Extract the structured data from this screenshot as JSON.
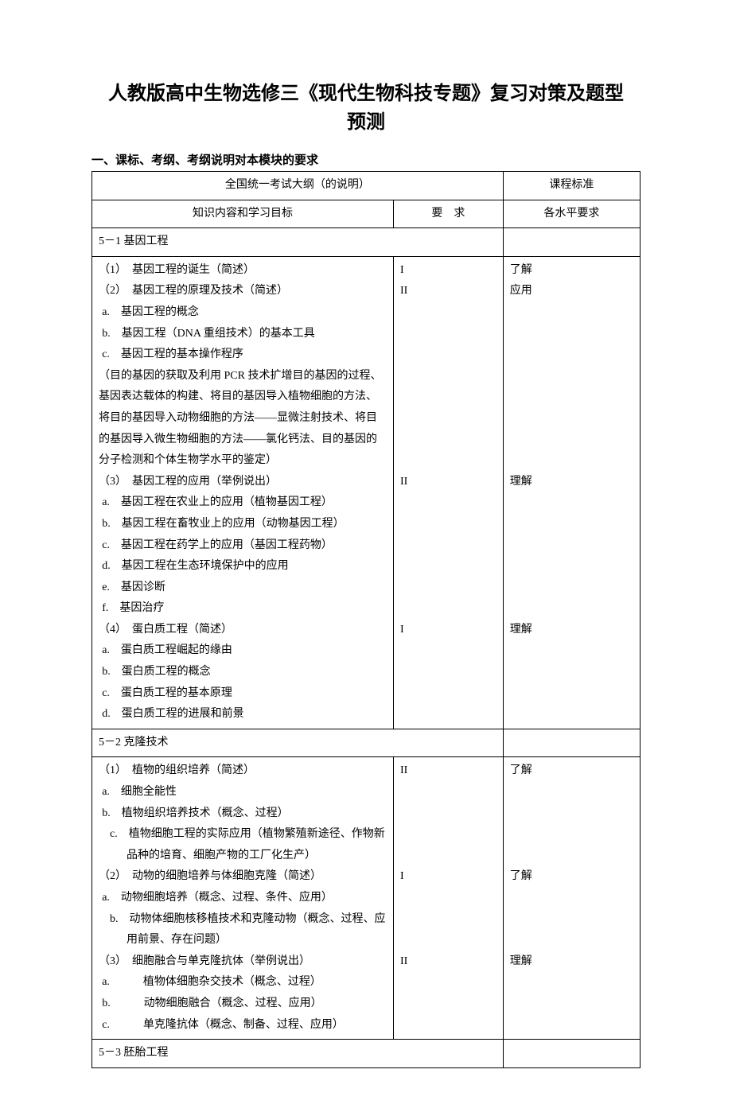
{
  "title_line1": "人教版高中生物选修三《现代生物科技专题》复习对策及题型",
  "title_line2": "预测",
  "section1_heading": "一、课标、考纲、考纲说明对本模块的要求",
  "header": {
    "exam_outline": "全国统一考试大纲（的说明）",
    "curriculum_std": "课程标准",
    "content_target": "知识内容和学习目标",
    "requirement": "要　求",
    "level_req": "各水平要求"
  },
  "req_labels": {
    "I": "I",
    "II": "II"
  },
  "std_labels": {
    "know": "了解",
    "apply": "应用",
    "understand": "理解"
  },
  "section_5_1": {
    "title": "5－1 基因工程",
    "items": [
      "（1）　基因工程的诞生（简述）",
      "（2）　基因工程的原理及技术（简述）",
      "a.　基因工程的概念",
      "b.　基因工程（DNA 重组技术）的基本工具",
      "c.　基因工程的基本操作程序",
      "（目的基因的获取及利用 PCR 技术扩增目的基因的过程、基因表达载体的构建、将目的基因导入植物细胞的方法、将目的基因导入动物细胞的方法——显微注射技术、将目的基因导入微生物细胞的方法——氯化钙法、目的基因的分子检测和个体生物学水平的鉴定）",
      "（3）　基因工程的应用（举例说出）",
      "a.　基因工程在农业上的应用（植物基因工程）",
      "b.　基因工程在畜牧业上的应用（动物基因工程）",
      "c.　基因工程在药学上的应用（基因工程药物）",
      "d.　基因工程在生态环境保护中的应用",
      "e.　基因诊断",
      "f.　基因治疗",
      "（4）　蛋白质工程（简述）",
      "a.　蛋白质工程崛起的缘由",
      "b.　蛋白质工程的概念",
      "c.　蛋白质工程的基本原理",
      "d.　蛋白质工程的进展和前景"
    ],
    "req_col": [
      "I",
      "II",
      "",
      "",
      "",
      "",
      "II",
      "",
      "",
      "",
      "",
      "",
      "",
      "I",
      "",
      "",
      "",
      ""
    ],
    "std_col": [
      "了解",
      "应用",
      "",
      "",
      "",
      "",
      "理解",
      "",
      "",
      "",
      "",
      "",
      "",
      "理解",
      "",
      "",
      "",
      ""
    ]
  },
  "section_5_2": {
    "title": "5－2 克隆技术",
    "items": [
      "（1）　植物的组织培养（简述）",
      "a.　细胞全能性",
      "b.　植物组织培养技术（概念、过程）",
      "c.　植物细胞工程的实际应用（植物繁殖新途径、作物新品种的培育、细胞产物的工厂化生产）",
      "（2）　动物的细胞培养与体细胞克隆（简述）",
      "a.　动物细胞培养（概念、过程、条件、应用）",
      "b.　动物体细胞核移植技术和克隆动物（概念、过程、应用前景、存在问题）",
      "（3）　细胞融合与单克隆抗体（举例说出）",
      "a.　　　植物体细胞杂交技术（概念、过程）",
      "b.　　　动物细胞融合（概念、过程、应用）",
      "c.　　　单克隆抗体（概念、制备、过程、应用）"
    ],
    "req_col": [
      "II",
      "",
      "",
      "",
      "I",
      "",
      "",
      "II",
      "",
      "",
      ""
    ],
    "std_col": [
      "了解",
      "",
      "",
      "",
      "了解",
      "",
      "",
      "理解",
      "",
      "",
      ""
    ]
  },
  "section_5_3": {
    "title": "5－3 胚胎工程"
  }
}
